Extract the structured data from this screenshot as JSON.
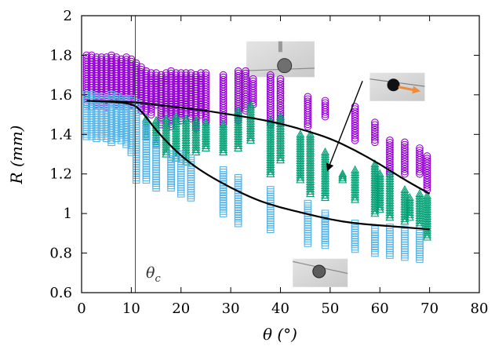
{
  "chart_data": {
    "type": "scatter",
    "xlabel": "θ (°)",
    "ylabel": "R (mm)",
    "xlim": [
      0,
      80
    ],
    "ylim": [
      0.6,
      2
    ],
    "xticks": [
      "0",
      "10",
      "20",
      "30",
      "40",
      "50",
      "60",
      "70",
      "80"
    ],
    "yticks": [
      "0.6",
      "0.8",
      "1",
      "1.2",
      "1.4",
      "1.6",
      "1.8",
      "2"
    ],
    "grid": false,
    "legend": "none",
    "critical_angle": {
      "x": 10.8,
      "label": "θc"
    },
    "series": [
      {
        "marker": "circle",
        "color": "#9400d3",
        "columns": [
          [
            1,
            1.55,
            1.8
          ],
          [
            2,
            1.54,
            1.8
          ],
          [
            3,
            1.55,
            1.79
          ],
          [
            4,
            1.55,
            1.79
          ],
          [
            5,
            1.54,
            1.79
          ],
          [
            6,
            1.56,
            1.8
          ],
          [
            7,
            1.55,
            1.79
          ],
          [
            8,
            1.55,
            1.78
          ],
          [
            9,
            1.54,
            1.79
          ],
          [
            10,
            1.55,
            1.78
          ],
          [
            11,
            1.56,
            1.76
          ],
          [
            12,
            1.52,
            1.74
          ],
          [
            13,
            1.52,
            1.72
          ],
          [
            14,
            1.5,
            1.71
          ],
          [
            15,
            1.55,
            1.71
          ],
          [
            16,
            1.45,
            1.7
          ],
          [
            17,
            1.5,
            1.71
          ],
          [
            18,
            1.44,
            1.72
          ],
          [
            19,
            1.5,
            1.71
          ],
          [
            20,
            1.47,
            1.71
          ],
          [
            21,
            1.5,
            1.71
          ],
          [
            22,
            1.48,
            1.71
          ],
          [
            23,
            1.43,
            1.7
          ],
          [
            24,
            1.5,
            1.71
          ],
          [
            25,
            1.46,
            1.71
          ],
          [
            28.5,
            1.45,
            1.7
          ],
          [
            31.5,
            1.47,
            1.72
          ],
          [
            33,
            1.52,
            1.72
          ],
          [
            34.5,
            1.55,
            1.68
          ],
          [
            38,
            1.45,
            1.7
          ],
          [
            40,
            1.46,
            1.68
          ],
          [
            45.5,
            1.44,
            1.59
          ],
          [
            49,
            1.49,
            1.57
          ],
          [
            55,
            1.37,
            1.54
          ],
          [
            59,
            1.36,
            1.46
          ],
          [
            62,
            1.2,
            1.37
          ],
          [
            65,
            1.2,
            1.36
          ],
          [
            68,
            1.2,
            1.33
          ],
          [
            69.5,
            1.12,
            1.29
          ]
        ]
      },
      {
        "marker": "triangle",
        "color": "#009e73",
        "columns": [
          [
            13,
            1.39,
            1.48
          ],
          [
            15,
            1.35,
            1.47
          ],
          [
            17,
            1.3,
            1.48
          ],
          [
            19,
            1.28,
            1.49
          ],
          [
            21,
            1.26,
            1.48
          ],
          [
            23,
            1.31,
            1.47
          ],
          [
            25,
            1.33,
            1.46
          ],
          [
            28.5,
            1.31,
            1.45
          ],
          [
            31.5,
            1.33,
            1.52
          ],
          [
            34,
            1.37,
            1.55
          ],
          [
            38,
            1.2,
            1.47
          ],
          [
            40,
            1.27,
            1.49
          ],
          [
            44,
            1.17,
            1.4
          ],
          [
            46,
            1.1,
            1.4
          ],
          [
            49,
            1.08,
            1.31
          ],
          [
            52.5,
            1.17,
            1.2
          ],
          [
            55,
            1.07,
            1.22
          ],
          [
            59,
            1.0,
            1.25
          ],
          [
            60,
            1.02,
            1.2
          ],
          [
            62,
            0.98,
            1.2
          ],
          [
            65,
            0.96,
            1.12
          ],
          [
            66,
            0.98,
            1.08
          ],
          [
            68,
            0.94,
            1.1
          ],
          [
            69.5,
            0.88,
            1.09
          ]
        ]
      },
      {
        "marker": "square",
        "color": "#56b4e9",
        "columns": [
          [
            1,
            1.39,
            1.6
          ],
          [
            2,
            1.39,
            1.6
          ],
          [
            3,
            1.38,
            1.59
          ],
          [
            4,
            1.39,
            1.59
          ],
          [
            5,
            1.38,
            1.58
          ],
          [
            6,
            1.36,
            1.6
          ],
          [
            7,
            1.38,
            1.59
          ],
          [
            8,
            1.37,
            1.58
          ],
          [
            9,
            1.35,
            1.58
          ],
          [
            10,
            1.31,
            1.58
          ],
          [
            11,
            1.17,
            1.56
          ],
          [
            13,
            1.17,
            1.45
          ],
          [
            15,
            1.13,
            1.37
          ],
          [
            18,
            1.13,
            1.3
          ],
          [
            20,
            1.1,
            1.3
          ],
          [
            22,
            1.08,
            1.28
          ],
          [
            28.5,
            1.0,
            1.22
          ],
          [
            31.5,
            0.95,
            1.18
          ],
          [
            38,
            0.92,
            1.12
          ],
          [
            45.5,
            0.85,
            1.05
          ],
          [
            49,
            0.84,
            1.0
          ],
          [
            55,
            0.82,
            0.95
          ],
          [
            59,
            0.8,
            0.92
          ],
          [
            62,
            0.79,
            0.93
          ],
          [
            65,
            0.78,
            0.92
          ],
          [
            68,
            0.77,
            0.91
          ]
        ]
      }
    ],
    "fit_curves": [
      {
        "color": "#000000",
        "x": [
          1,
          10,
          15,
          20,
          25,
          30,
          35,
          40,
          45,
          50,
          55,
          60,
          65,
          70
        ],
        "y": [
          1.57,
          1.565,
          1.55,
          1.535,
          1.52,
          1.5,
          1.48,
          1.455,
          1.42,
          1.38,
          1.32,
          1.25,
          1.17,
          1.1
        ]
      },
      {
        "color": "#000000",
        "x": [
          1,
          10,
          12,
          15,
          18,
          21,
          25,
          30,
          35,
          40,
          45,
          50,
          55,
          60,
          65,
          70
        ],
        "y": [
          1.57,
          1.56,
          1.52,
          1.42,
          1.34,
          1.27,
          1.2,
          1.13,
          1.07,
          1.03,
          1.0,
          0.97,
          0.95,
          0.94,
          0.93,
          0.92
        ]
      }
    ],
    "arrow": {
      "from": [
        56.5,
        1.67
      ],
      "to": [
        49.5,
        1.22
      ]
    },
    "velocity_arrow_color": "#f08a3c",
    "insets": [
      {
        "anchor": [
          40.0,
          1.78
        ],
        "width": 62,
        "height": 38,
        "scene": "drop-near-needle"
      },
      {
        "anchor": [
          63.5,
          1.64
        ],
        "width": 50,
        "height": 30,
        "scene": "drop-sliding"
      },
      {
        "anchor": [
          48.0,
          0.7
        ],
        "width": 50,
        "height": 30,
        "scene": "drop-on-incline"
      }
    ]
  }
}
